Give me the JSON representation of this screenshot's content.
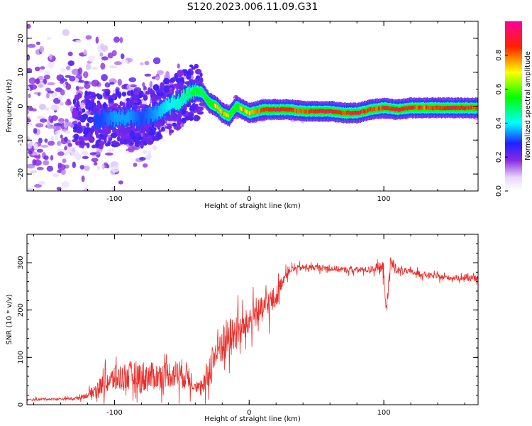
{
  "title": "S120.2023.006.11.09.G31",
  "chart_data": [
    {
      "type": "heatmap",
      "xlabel": "Height of straight line (km)",
      "ylabel": "Frequency (Hz)",
      "xlim": [
        -165,
        170
      ],
      "ylim": [
        -25,
        25
      ],
      "xticks": [
        -100,
        0,
        100
      ],
      "yticks": [
        -20,
        -10,
        0,
        10,
        20
      ],
      "colorbar": {
        "label": "Normalized spectral amplitude",
        "range": [
          0,
          1
        ],
        "ticks": [
          "0.0",
          "0.2",
          "0.4",
          "0.6",
          "0.8"
        ],
        "colormap": "rainbow"
      },
      "ridge": {
        "description_of_line": "peak frequency ridge",
        "x": [
          -110,
          -100,
          -90,
          -80,
          -70,
          -60,
          -50,
          -45,
          -40,
          -35,
          -30,
          -25,
          -20,
          -15,
          -10,
          -5,
          0,
          10,
          20,
          30,
          40,
          50,
          60,
          70,
          80,
          90,
          100,
          110,
          120,
          130,
          140,
          150,
          160,
          170
        ],
        "y": [
          -4,
          -3.5,
          -3,
          -4,
          -2,
          0,
          2,
          4,
          4.5,
          4,
          1,
          0,
          -2,
          -3,
          0,
          -1,
          -2,
          -1,
          -1,
          -1,
          -1.5,
          -1.5,
          -1.5,
          -2,
          -2,
          -1,
          -0.5,
          -1,
          -0.5,
          -0.5,
          -0.5,
          -0.5,
          -0.5,
          -0.5
        ],
        "amplitude": [
          0.3,
          0.35,
          0.35,
          0.3,
          0.35,
          0.4,
          0.45,
          0.5,
          0.55,
          0.5,
          0.6,
          0.75,
          0.8,
          0.7,
          0.6,
          0.8,
          0.75,
          0.9,
          0.95,
          0.9,
          0.85,
          0.95,
          0.95,
          0.9,
          0.95,
          0.85,
          0.9,
          0.95,
          0.9,
          0.85,
          0.9,
          0.95,
          0.9,
          0.85
        ]
      }
    },
    {
      "type": "line",
      "xlabel": "Height of straight line (km)",
      "ylabel": "SNR (10 * v/v)",
      "xlim": [
        -165,
        170
      ],
      "ylim": [
        0,
        360
      ],
      "xticks": [
        -100,
        0,
        100
      ],
      "yticks": [
        0,
        100,
        200,
        300
      ],
      "color": "#e8302c",
      "series": [
        {
          "x": [
            -165,
            -150,
            -140,
            -130,
            -120,
            -110,
            -100,
            -90,
            -80,
            -70,
            -60,
            -50,
            -45,
            -40,
            -35,
            -30,
            -25,
            -20,
            -15,
            -10,
            -5,
            0,
            5,
            10,
            15,
            20,
            25,
            30,
            40,
            50,
            60,
            70,
            80,
            90,
            95,
            100,
            102,
            105,
            110,
            120,
            130,
            140,
            150,
            160,
            170
          ],
          "y": [
            10,
            12,
            12,
            13,
            20,
            40,
            55,
            60,
            58,
            60,
            65,
            65,
            60,
            40,
            30,
            70,
            110,
            130,
            140,
            150,
            160,
            175,
            195,
            200,
            215,
            225,
            265,
            285,
            290,
            290,
            288,
            285,
            285,
            285,
            290,
            285,
            195,
            300,
            285,
            280,
            275,
            270,
            268,
            268,
            265
          ],
          "noise": [
            3,
            3,
            3,
            4,
            8,
            25,
            35,
            40,
            45,
            35,
            35,
            40,
            35,
            15,
            20,
            50,
            60,
            55,
            55,
            50,
            40,
            40,
            35,
            35,
            40,
            30,
            15,
            10,
            8,
            8,
            8,
            8,
            8,
            8,
            12,
            25,
            20,
            25,
            10,
            8,
            8,
            7,
            7,
            7,
            7
          ]
        }
      ]
    }
  ]
}
